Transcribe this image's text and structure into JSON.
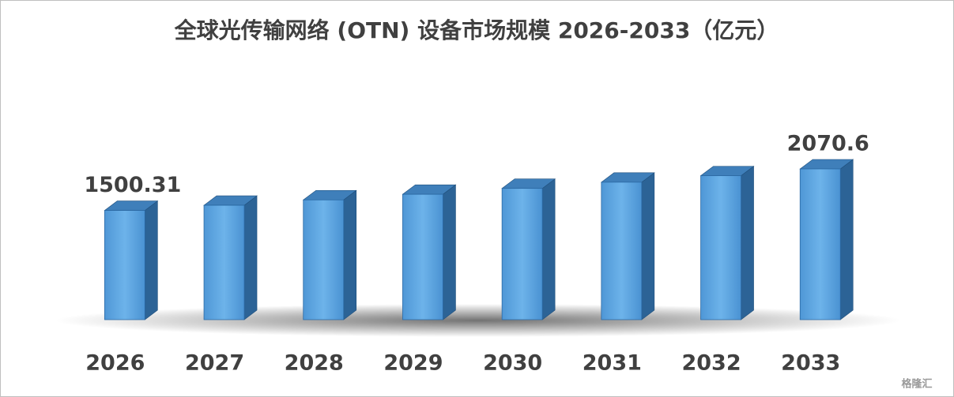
{
  "chart_data": {
    "type": "bar3d",
    "title": "全球光传输网络 (OTN) 设备市场规模 2026-2033（亿元）",
    "categories": [
      "2026",
      "2027",
      "2028",
      "2029",
      "2030",
      "2031",
      "2032",
      "2033"
    ],
    "values": [
      1500.31,
      1571,
      1645,
      1722,
      1803,
      1888,
      1977,
      2070.6
    ],
    "value_labels": [
      "1500.31",
      null,
      null,
      null,
      null,
      null,
      null,
      "2070.6"
    ],
    "color": "#4a9ddd"
  },
  "watermark": "格隆汇"
}
